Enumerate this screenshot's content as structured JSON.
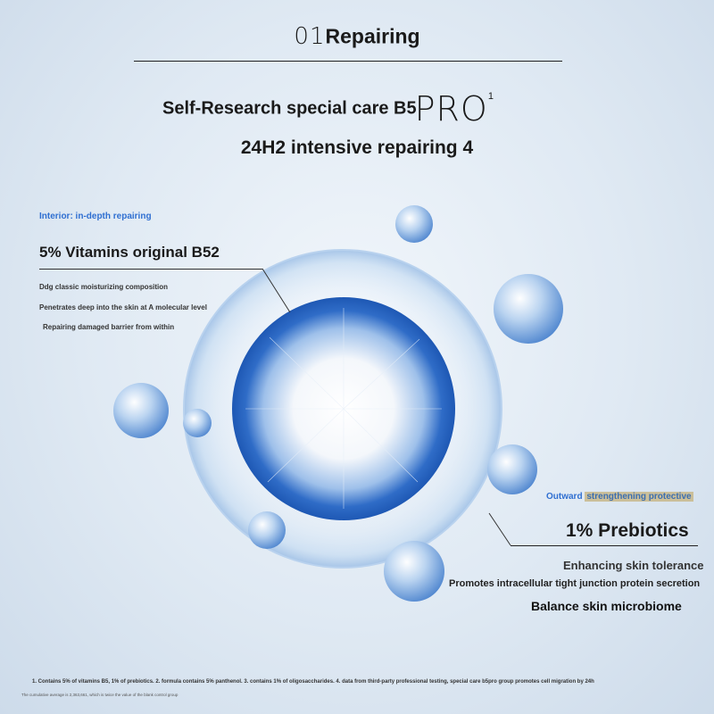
{
  "header": {
    "number": "01",
    "title": "Repairing"
  },
  "headline": {
    "text": "Self-Research special care B5",
    "logo": "PRO",
    "superscript": "1"
  },
  "subheadline": "24H2 intensive repairing 4",
  "interior": {
    "tag": "Interior: in-depth repairing",
    "heading": "5% Vitamins original B52",
    "lines": [
      "Ddg classic moisturizing composition",
      "Penetrates deep into the skin at A molecular level",
      "Repairing damaged barrier from within"
    ]
  },
  "outward": {
    "tag_a": "Outward",
    "tag_b": "strengthening protective",
    "heading": "1% Prebiotics",
    "lines": [
      "Enhancing skin tolerance",
      "Promotes intracellular tight junction protein secretion",
      "Balance skin microbiome"
    ]
  },
  "footnote": "1. Contains 5% of vitamins B5, 1% of prebiotics. 2. formula contains 5% panthenol. 3. contains 1% of oligosaccharides. 4. data from third-party professional testing, special care b5pro group promotes cell migration by 24h",
  "footnote_small": "The cumulative average is 2,363,661, which is twice the value of the blank control group",
  "colors": {
    "accent_blue": "#2f6fd1",
    "bubble_blue": "#5c93d6",
    "highlight": "#cbbf9a"
  }
}
